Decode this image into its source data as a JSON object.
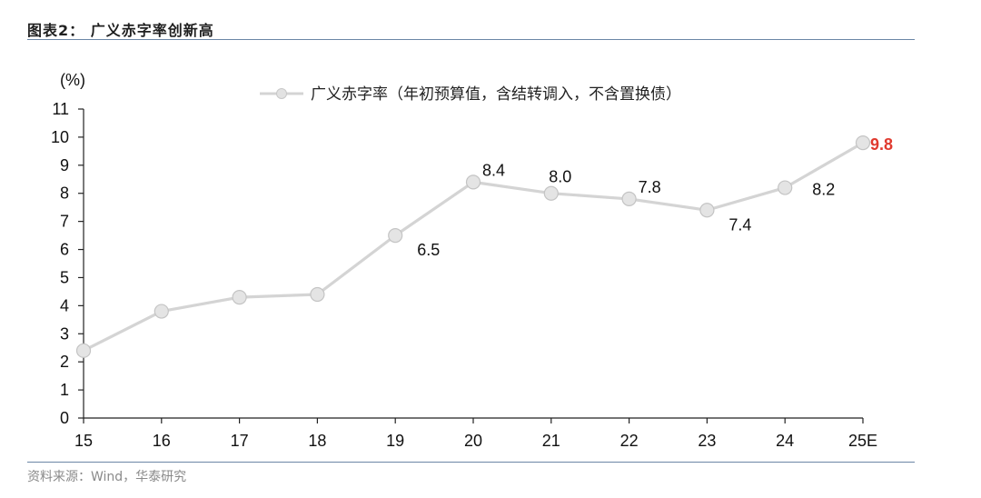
{
  "header": {
    "title": "图表2： 广义赤字率创新高"
  },
  "footer": {
    "source": "资料来源：Wind，华泰研究"
  },
  "colors": {
    "series": "#d4d4d4",
    "highlight": "#e03a2f",
    "rule": "#6b86a6"
  },
  "chart_data": {
    "type": "line",
    "title": "",
    "ylabel": "(%)",
    "xlabel": "",
    "categories": [
      "15",
      "16",
      "17",
      "18",
      "19",
      "20",
      "21",
      "22",
      "23",
      "24",
      "25E"
    ],
    "ylim": [
      0,
      11
    ],
    "yticks": [
      0,
      1,
      2,
      3,
      4,
      5,
      6,
      7,
      8,
      9,
      10,
      11
    ],
    "grid": false,
    "legend_position": "top-center",
    "series": [
      {
        "name": "广义赤字率（年初预算值，含结转调入，不含置换债）",
        "values": [
          2.4,
          3.8,
          4.3,
          4.4,
          6.5,
          8.4,
          8.0,
          7.8,
          7.4,
          8.2,
          9.8
        ]
      }
    ],
    "data_labels": [
      {
        "index": 4,
        "text": "6.5",
        "position": "below-right"
      },
      {
        "index": 5,
        "text": "8.4",
        "position": "above-right"
      },
      {
        "index": 6,
        "text": "8.0",
        "position": "above"
      },
      {
        "index": 7,
        "text": "7.8",
        "position": "above-right"
      },
      {
        "index": 8,
        "text": "7.4",
        "position": "below-right"
      },
      {
        "index": 9,
        "text": "8.2",
        "position": "right"
      },
      {
        "index": 10,
        "text": "9.8",
        "position": "right",
        "highlight": true
      }
    ]
  }
}
